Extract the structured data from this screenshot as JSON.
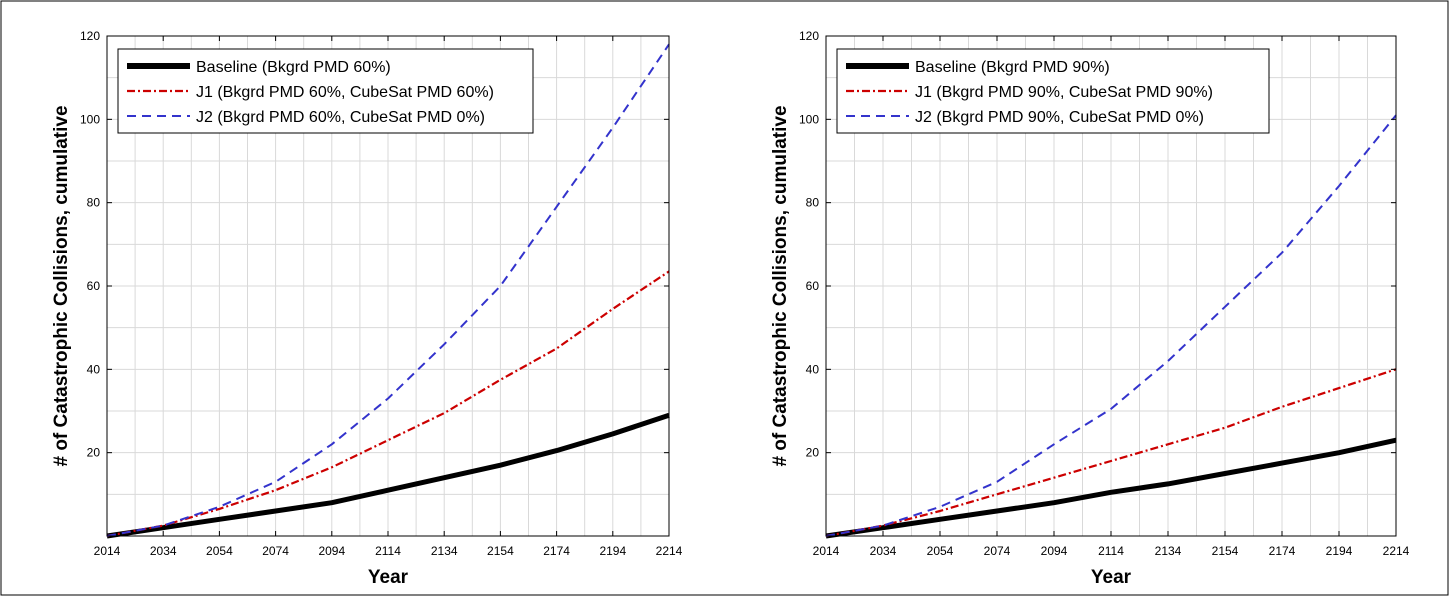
{
  "figure": {
    "colors": {
      "baseline": "#000000",
      "j1": "#cc0000",
      "j2": "#3333cc",
      "grid": "#d9d9d9",
      "border": "#000000"
    }
  },
  "chart_data": [
    {
      "type": "line",
      "xlabel": "Year",
      "ylabel": "# of Catastrophic Collisions, cumulative",
      "xlim": [
        2014,
        2214
      ],
      "ylim": [
        0,
        120
      ],
      "xticks": [
        "2014",
        "2034",
        "2054",
        "2074",
        "2094",
        "2114",
        "2134",
        "2154",
        "2174",
        "2194",
        "2214"
      ],
      "yticks": [
        "20",
        "40",
        "60",
        "80",
        "100",
        "120"
      ],
      "grid": true,
      "legend_position": "top-left",
      "x": [
        2014,
        2034,
        2054,
        2074,
        2094,
        2114,
        2134,
        2154,
        2174,
        2194,
        2214
      ],
      "series": [
        {
          "name": "Baseline (Bkgrd PMD 60%)",
          "style": "solid-thick",
          "color": "#000000",
          "values": [
            0,
            2,
            4,
            6,
            8,
            11,
            14,
            17,
            20.5,
            24.5,
            29
          ]
        },
        {
          "name": "J1 (Bkgrd PMD 60%, CubeSat PMD 60%)",
          "style": "dash-dot",
          "color": "#cc0000",
          "values": [
            0,
            2.5,
            6.5,
            11,
            16.5,
            23,
            29.5,
            37.5,
            45,
            54.5,
            63.5
          ]
        },
        {
          "name": "J2 (Bkgrd PMD 60%, CubeSat PMD 0%)",
          "style": "dashed",
          "color": "#3333cc",
          "values": [
            0,
            2.5,
            7,
            13,
            22,
            33,
            46,
            60,
            79,
            98,
            118
          ]
        }
      ]
    },
    {
      "type": "line",
      "xlabel": "Year",
      "ylabel": "# of Catastrophic Collisions, cumulative",
      "xlim": [
        2014,
        2214
      ],
      "ylim": [
        0,
        120
      ],
      "xticks": [
        "2014",
        "2034",
        "2054",
        "2074",
        "2094",
        "2114",
        "2134",
        "2154",
        "2174",
        "2194",
        "2214"
      ],
      "yticks": [
        "20",
        "40",
        "60",
        "80",
        "100",
        "120"
      ],
      "grid": true,
      "legend_position": "top-left",
      "x": [
        2014,
        2034,
        2054,
        2074,
        2094,
        2114,
        2134,
        2154,
        2174,
        2194,
        2214
      ],
      "series": [
        {
          "name": "Baseline (Bkgrd PMD 90%)",
          "style": "solid-thick",
          "color": "#000000",
          "values": [
            0,
            2,
            4,
            6,
            8,
            10.5,
            12.5,
            15,
            17.5,
            20,
            23
          ]
        },
        {
          "name": "J1 (Bkgrd PMD 90%, CubeSat PMD 90%)",
          "style": "dash-dot",
          "color": "#cc0000",
          "values": [
            0,
            2.5,
            6,
            10,
            14,
            18,
            22,
            26,
            31,
            35.5,
            40
          ]
        },
        {
          "name": "J2 (Bkgrd PMD 90%, CubeSat PMD 0%)",
          "style": "dashed",
          "color": "#3333cc",
          "values": [
            0,
            2.5,
            7,
            13,
            22,
            30.5,
            42,
            55,
            68,
            84,
            101
          ]
        }
      ]
    }
  ]
}
